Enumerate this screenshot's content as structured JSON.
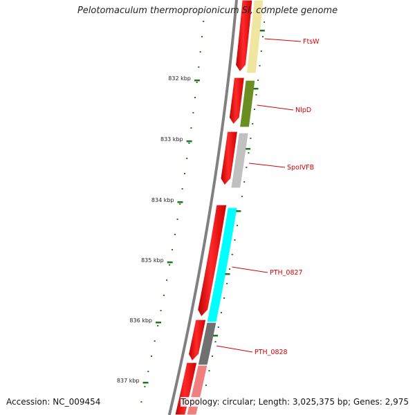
{
  "title": "Pelotomaculum thermopropionicum SI, complete genome",
  "footer": {
    "accession": "Accession: NC_009454",
    "summary": "Topology: circular; Length: 3,025,375 bp; Genes: 2,975"
  },
  "axis_labels": [
    "832 kbp",
    "833 kbp",
    "834 kbp",
    "835 kbp",
    "836 kbp",
    "837 kbp"
  ],
  "genes": [
    {
      "label": "FtsW",
      "color": "#f0e6a0"
    },
    {
      "label": "NlpD",
      "color": "#6b8e23"
    },
    {
      "label": "SpoIVFB",
      "color": "#c0c0c0"
    },
    {
      "label": "PTH_0827",
      "color": "#00ffff"
    },
    {
      "label": "PTH_0828",
      "color": "#707070"
    },
    {
      "label": "",
      "color": "#f08080"
    }
  ],
  "colors": {
    "backbone": "#808080",
    "cds": "#ee0000",
    "tick": "#1a7a1a",
    "label": "#d40000"
  }
}
